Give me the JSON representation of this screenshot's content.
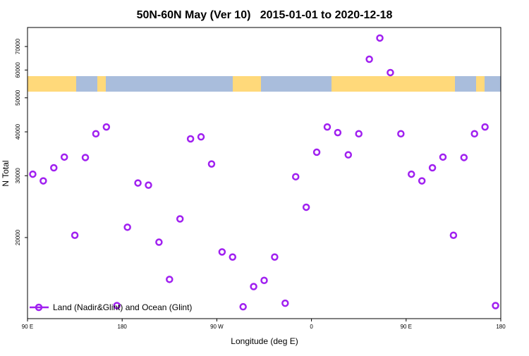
{
  "chart_data": {
    "type": "scatter",
    "title": "50N-60N May (Ver 10)   2015-01-01 to 2020-12-18",
    "xlabel": "Longitude (deg E)",
    "ylabel": "N Total",
    "x": [
      95,
      105,
      115,
      125,
      135,
      145,
      155,
      165,
      175,
      185,
      195,
      205,
      215,
      225,
      235,
      245,
      255,
      265,
      275,
      285,
      295,
      305,
      315,
      325,
      335,
      345,
      355,
      365,
      375,
      385,
      395,
      405,
      415,
      425,
      435,
      445,
      455,
      465,
      475,
      485,
      495,
      505,
      515,
      525,
      535
    ],
    "series": [
      {
        "name": "Land (Nadir&Glint) and Ocean (Glint)",
        "color": "#a020f0",
        "values": [
          30300,
          29000,
          31600,
          33900,
          20300,
          33800,
          39500,
          41300,
          12800,
          21400,
          28600,
          28200,
          19400,
          15200,
          22600,
          38200,
          38700,
          32400,
          18200,
          17600,
          12700,
          14500,
          15100,
          17600,
          13000,
          29800,
          24400,
          35000,
          41300,
          39800,
          34400,
          39500,
          64400,
          74000,
          59000,
          39500,
          30300,
          29000,
          31600,
          33900,
          20300,
          33800,
          39500,
          41300,
          12800
        ]
      }
    ],
    "xlim": [
      90,
      540
    ],
    "xticks": [
      {
        "value": 90,
        "label": "90 E"
      },
      {
        "value": 180,
        "label": "180"
      },
      {
        "value": 270,
        "label": "90 W"
      },
      {
        "value": 360,
        "label": "0"
      },
      {
        "value": 450,
        "label": "90 E"
      },
      {
        "value": 540,
        "label": "180"
      }
    ],
    "ylim": [
      11750,
      79300
    ],
    "yscale": "log",
    "yticks": [
      20000,
      30000,
      40000,
      50000,
      60000,
      70000
    ],
    "legend": "bottom-left"
  }
}
